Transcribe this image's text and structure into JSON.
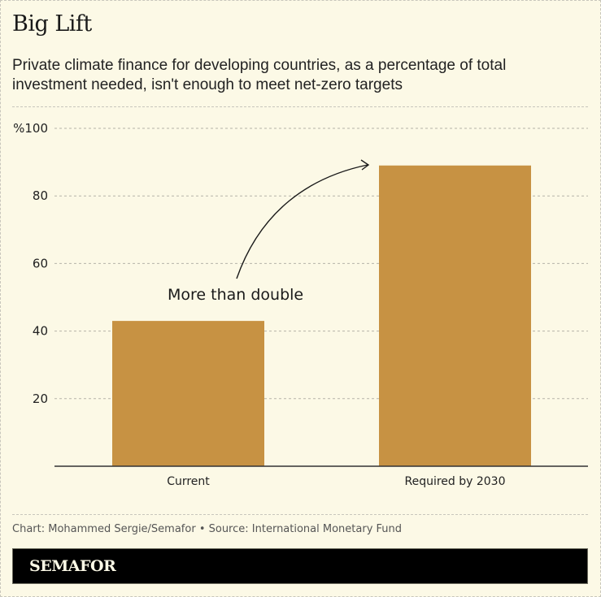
{
  "header": {
    "title": "Big Lift",
    "subtitle": "Private climate finance for developing countries, as a percentage of total investment needed, isn't enough to meet net-zero targets"
  },
  "colors": {
    "background": "#fcf9e6",
    "bar": "#c79243",
    "text": "#222222",
    "brand_bar": "#000000"
  },
  "chart_data": {
    "type": "bar",
    "title": "Big Lift",
    "subtitle": "Private climate finance for developing countries, as a percentage of total investment needed, isn't enough to meet net-zero targets",
    "categories": [
      "Current",
      "Required by 2030"
    ],
    "values": [
      43,
      89
    ],
    "xlabel": "",
    "ylabel": "",
    "ylim": [
      0,
      100
    ],
    "yticks": [
      20,
      40,
      60,
      80,
      100
    ],
    "ytick_labels": [
      "20",
      "40",
      "60",
      "80",
      "%100"
    ],
    "grid": true,
    "annotations": [
      {
        "text": "More than double",
        "arrow_from": "Current",
        "arrow_to": "Required by 2030"
      }
    ]
  },
  "footer": {
    "credit": "Chart: Mohammed Sergie/Semafor • Source: International Monetary Fund",
    "brand": "SEMAFOR"
  }
}
